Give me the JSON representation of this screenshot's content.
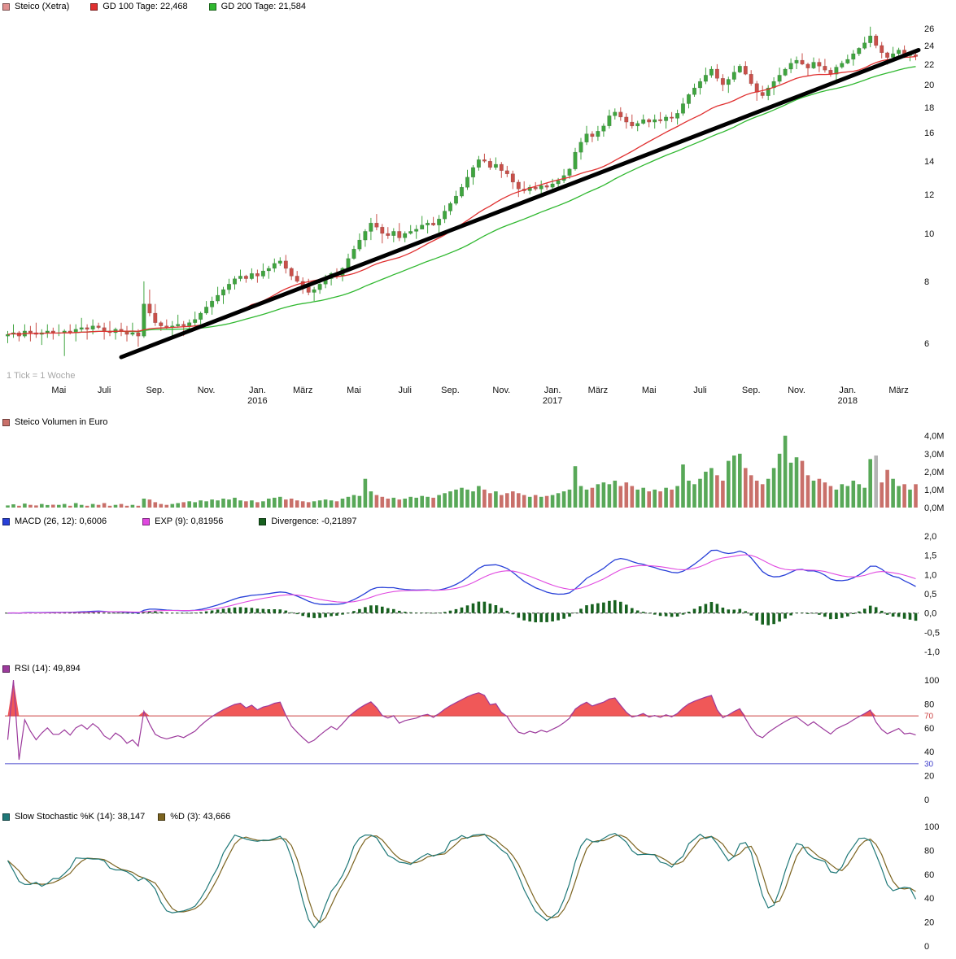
{
  "page": {
    "tick_note": "1 Tick = 1 Woche"
  },
  "colors": {
    "candle_up": "#3fa53f",
    "candle_down": "#c9504a",
    "gd100": "#e03030",
    "gd200": "#30b830",
    "trend": "#000000",
    "vol_up": "#58a858",
    "vol_down": "#c9706a",
    "vol_neutral": "#b4b4b4",
    "macd": "#2840d8",
    "macd_signal": "#e048e0",
    "divergence": "#17611f",
    "rsi": "#9c3a9c",
    "rsi_fill": "#f05858",
    "rsi_70": "#cc4444",
    "rsi_30": "#4444cc",
    "stoch_k": "#1f7878",
    "stoch_d": "#7c6420",
    "legend_title_fill": "#e09090"
  },
  "legends": {
    "main": [
      {
        "label": "Steico (Xetra)"
      },
      {
        "label": "GD 100 Tage: 22,468"
      },
      {
        "label": "GD 200 Tage: 21,584"
      }
    ],
    "volume": [
      {
        "label": "Steico Volumen in Euro"
      }
    ],
    "macd": [
      {
        "label": "MACD (26, 12): 0,6006"
      },
      {
        "label": "EXP (9): 0,81956"
      },
      {
        "label": "Divergence: -0,21897"
      }
    ],
    "rsi": [
      {
        "label": "RSI (14): 49,894"
      }
    ],
    "stoch": [
      {
        "label": "Slow Stochastic %K (14): 38,147"
      },
      {
        "label": "%D (3): 43,666"
      }
    ]
  },
  "chart_data": {
    "type": "multi-panel-stock-chart",
    "title": "Steico (Xetra)",
    "x_unit": "1 Tick = 1 Woche",
    "weeks": 161,
    "x_ticks": [
      {
        "label": "Mai",
        "week": 9
      },
      {
        "label": "Juli",
        "week": 17
      },
      {
        "label": "Sep.",
        "week": 26
      },
      {
        "label": "Nov.",
        "week": 35
      },
      {
        "label": "Jan.",
        "week": 44,
        "year": "2016"
      },
      {
        "label": "März",
        "week": 52
      },
      {
        "label": "Mai",
        "week": 61
      },
      {
        "label": "Juli",
        "week": 70
      },
      {
        "label": "Sep.",
        "week": 78
      },
      {
        "label": "Nov.",
        "week": 87
      },
      {
        "label": "Jan.",
        "week": 96,
        "year": "2017"
      },
      {
        "label": "März",
        "week": 104
      },
      {
        "label": "Mai",
        "week": 113
      },
      {
        "label": "Juli",
        "week": 122
      },
      {
        "label": "Sep.",
        "week": 131
      },
      {
        "label": "Nov.",
        "week": 139
      },
      {
        "label": "Jan.",
        "week": 148,
        "year": "2018"
      },
      {
        "label": "März",
        "week": 157
      }
    ],
    "price": {
      "type": "candlestick",
      "y_scale": "log",
      "ylim": [
        5.0,
        27.5
      ],
      "y_ticks": [
        26,
        24,
        22,
        20,
        18,
        16,
        14,
        12,
        10,
        8,
        6
      ],
      "sma_overlays": [
        {
          "name": "GD 100 Tage",
          "weeks": 20,
          "last": 22.468
        },
        {
          "name": "GD 200 Tage",
          "weeks": 40,
          "last": 21.584
        }
      ],
      "trendline": {
        "from_week": 20,
        "from_price": 5.62,
        "to_week": 161,
        "to_price": 23.5
      },
      "open": [
        6.2,
        6.25,
        6.3,
        6.2,
        6.35,
        6.3,
        6.25,
        6.3,
        6.35,
        6.3,
        6.3,
        6.35,
        6.3,
        6.4,
        6.45,
        6.4,
        6.5,
        6.45,
        6.35,
        6.3,
        6.4,
        6.35,
        6.25,
        6.3,
        6.2,
        7.2,
        6.9,
        6.6,
        6.5,
        6.45,
        6.5,
        6.55,
        6.5,
        6.6,
        6.7,
        6.9,
        7.1,
        7.3,
        7.5,
        7.7,
        7.9,
        8.1,
        8.2,
        8.1,
        8.3,
        8.2,
        8.4,
        8.5,
        8.7,
        8.8,
        8.5,
        8.2,
        8.0,
        7.8,
        7.6,
        7.7,
        7.9,
        8.1,
        8.3,
        8.2,
        8.5,
        8.9,
        9.3,
        9.7,
        10.1,
        10.5,
        10.3,
        10.0,
        9.9,
        10.1,
        9.8,
        10.0,
        10.1,
        10.2,
        10.4,
        10.5,
        10.4,
        10.7,
        11.1,
        11.5,
        11.9,
        12.4,
        13.0,
        13.6,
        14.1,
        14.0,
        13.6,
        13.8,
        13.4,
        13.2,
        12.7,
        12.3,
        12.2,
        12.4,
        12.3,
        12.5,
        12.4,
        12.6,
        12.8,
        13.1,
        13.5,
        14.6,
        15.3,
        15.9,
        15.7,
        16.1,
        16.5,
        17.3,
        17.6,
        17.2,
        16.8,
        16.5,
        16.7,
        17.0,
        16.8,
        17.0,
        16.9,
        17.2,
        17.1,
        17.5,
        18.3,
        19.1,
        19.7,
        20.3,
        20.9,
        21.5,
        20.6,
        20.0,
        20.5,
        21.2,
        21.8,
        21.0,
        20.1,
        19.3,
        19.0,
        19.7,
        20.3,
        20.9,
        21.5,
        22.1,
        22.4,
        22.0,
        21.6,
        22.2,
        21.8,
        21.4,
        21.0,
        21.7,
        22.1,
        22.5,
        23.1,
        23.7,
        24.3,
        25.1,
        24.0,
        23.2,
        22.7,
        23.1,
        23.5,
        22.9,
        23.0
      ],
      "high": [
        6.35,
        6.55,
        6.35,
        6.55,
        6.5,
        6.6,
        6.4,
        6.55,
        6.45,
        6.55,
        6.4,
        6.55,
        6.55,
        6.75,
        6.55,
        6.7,
        6.6,
        6.6,
        6.65,
        6.45,
        6.6,
        6.5,
        6.6,
        6.4,
        8.0,
        7.7,
        7.2,
        6.65,
        6.7,
        6.65,
        6.85,
        6.65,
        6.7,
        6.95,
        6.95,
        7.3,
        7.45,
        7.8,
        7.8,
        8.1,
        8.2,
        8.45,
        8.25,
        8.5,
        8.45,
        8.7,
        8.6,
        8.9,
        8.95,
        9.05,
        8.55,
        8.4,
        8.15,
        8.1,
        7.8,
        8.1,
        8.25,
        8.35,
        8.5,
        8.55,
        9.1,
        9.45,
        10.0,
        10.2,
        10.75,
        10.95,
        10.45,
        10.3,
        10.25,
        10.5,
        10.1,
        10.4,
        10.4,
        10.85,
        10.65,
        10.8,
        10.9,
        11.4,
        11.6,
        12.2,
        12.6,
        13.45,
        13.75,
        14.35,
        14.5,
        14.2,
        14.25,
        13.95,
        13.7,
        13.4,
        12.85,
        12.75,
        12.55,
        12.7,
        12.8,
        12.65,
        12.9,
        12.95,
        13.5,
        13.55,
        14.9,
        15.6,
        16.5,
        16.1,
        16.5,
        16.7,
        17.8,
        17.9,
        18.0,
        17.5,
        17.4,
        16.9,
        17.4,
        17.1,
        17.4,
        17.6,
        17.4,
        17.6,
        17.8,
        18.8,
        19.2,
        20.1,
        20.6,
        21.65,
        21.8,
        22.0,
        21.0,
        20.75,
        21.85,
        22.0,
        22.3,
        21.4,
        20.35,
        19.9,
        19.95,
        20.7,
        21.65,
        21.65,
        22.6,
        22.8,
        23.15,
        22.15,
        22.7,
        22.6,
        22.55,
        21.65,
        21.95,
        22.35,
        23.0,
        23.5,
        23.8,
        25.0,
        26.2,
        25.3,
        24.4,
        23.3,
        23.85,
        23.75,
        24.0,
        23.15,
        23.4
      ],
      "low": [
        6.0,
        6.15,
        6.05,
        6.15,
        6.05,
        6.15,
        5.95,
        6.15,
        6.1,
        6.2,
        5.65,
        6.25,
        6.05,
        6.3,
        6.1,
        6.25,
        6.4,
        6.1,
        6.2,
        6.1,
        6.2,
        6.05,
        6.2,
        5.9,
        6.15,
        6.8,
        6.5,
        6.35,
        6.4,
        6.2,
        6.45,
        6.2,
        6.35,
        6.5,
        6.55,
        6.85,
        6.85,
        7.2,
        7.2,
        7.55,
        7.7,
        8.0,
        7.95,
        8.05,
        7.95,
        8.1,
        8.1,
        8.35,
        8.6,
        8.3,
        8.05,
        7.95,
        7.55,
        7.5,
        7.3,
        7.55,
        7.75,
        7.85,
        8.1,
        8.0,
        8.4,
        8.85,
        9.2,
        9.4,
        9.7,
        10.15,
        9.55,
        9.75,
        9.6,
        9.65,
        9.6,
        9.95,
        9.75,
        10.25,
        10.0,
        10.35,
        10.0,
        10.5,
        10.9,
        11.4,
        11.8,
        12.25,
        12.55,
        13.4,
        13.9,
        13.45,
        13.45,
        12.95,
        13.0,
        12.3,
        11.85,
        12.05,
        12.0,
        12.2,
        11.9,
        12.25,
        12.2,
        12.3,
        12.65,
        12.9,
        13.4,
        14.1,
        15.1,
        15.3,
        15.4,
        15.7,
        16.3,
        17.0,
        16.9,
        16.3,
        16.3,
        16.1,
        16.6,
        16.4,
        16.3,
        16.7,
        16.3,
        16.8,
        16.6,
        17.3,
        17.9,
        18.9,
        19.1,
        20.05,
        20.65,
        20.3,
        19.4,
        19.25,
        20.25,
        21.1,
        20.9,
        19.9,
        18.55,
        18.75,
        18.6,
        19.05,
        20.05,
        20.8,
        21.1,
        21.5,
        21.9,
        20.85,
        21.5,
        21.2,
        21.15,
        20.75,
        20.25,
        21.55,
        22.0,
        21.85,
        22.85,
        23.55,
        23.8,
        23.7,
        22.6,
        21.95,
        22.45,
        22.75,
        22.65,
        22.3,
        22.4
      ],
      "close": [
        6.25,
        6.3,
        6.2,
        6.35,
        6.3,
        6.25,
        6.3,
        6.35,
        6.3,
        6.3,
        6.35,
        6.3,
        6.4,
        6.45,
        6.4,
        6.5,
        6.45,
        6.35,
        6.3,
        6.4,
        6.35,
        6.25,
        6.3,
        6.2,
        7.2,
        6.9,
        6.6,
        6.5,
        6.45,
        6.5,
        6.55,
        6.5,
        6.6,
        6.7,
        6.9,
        7.1,
        7.3,
        7.5,
        7.7,
        7.9,
        8.1,
        8.2,
        8.1,
        8.3,
        8.2,
        8.4,
        8.5,
        8.7,
        8.8,
        8.5,
        8.2,
        8.0,
        7.8,
        7.6,
        7.7,
        7.9,
        8.1,
        8.3,
        8.2,
        8.5,
        8.9,
        9.3,
        9.7,
        10.1,
        10.5,
        10.3,
        10.0,
        9.9,
        10.1,
        9.8,
        10.0,
        10.1,
        10.2,
        10.4,
        10.5,
        10.4,
        10.7,
        11.1,
        11.5,
        11.9,
        12.4,
        13.0,
        13.6,
        14.1,
        14.0,
        13.6,
        13.8,
        13.4,
        13.2,
        12.7,
        12.3,
        12.2,
        12.4,
        12.3,
        12.5,
        12.4,
        12.6,
        12.8,
        13.1,
        13.5,
        14.6,
        15.3,
        15.9,
        15.7,
        16.1,
        16.5,
        17.3,
        17.6,
        17.2,
        16.8,
        16.5,
        16.7,
        17.0,
        16.8,
        17.0,
        16.9,
        17.2,
        17.1,
        17.5,
        18.3,
        19.1,
        19.7,
        20.3,
        20.9,
        21.5,
        20.6,
        20.0,
        20.5,
        21.2,
        21.8,
        21.0,
        20.1,
        19.3,
        19.0,
        19.7,
        20.3,
        20.9,
        21.5,
        22.1,
        22.4,
        22.0,
        21.6,
        22.2,
        21.8,
        21.4,
        21.0,
        21.7,
        22.1,
        22.5,
        23.1,
        23.7,
        24.3,
        25.1,
        24.0,
        23.2,
        22.7,
        23.1,
        23.5,
        22.9,
        23.0,
        22.8
      ]
    },
    "volume": {
      "type": "bar",
      "unit": "EUR millions",
      "ylim": [
        0,
        4.35
      ],
      "y_ticks": [
        {
          "v": 4,
          "label": "4,0M"
        },
        {
          "v": 3,
          "label": "3,0M"
        },
        {
          "v": 2,
          "label": "2,0M"
        },
        {
          "v": 1,
          "label": "1,0M"
        },
        {
          "v": 0,
          "label": "0,0M"
        }
      ],
      "neutral_weeks": [
        153
      ],
      "values": [
        0.12,
        0.18,
        0.1,
        0.22,
        0.15,
        0.12,
        0.2,
        0.14,
        0.16,
        0.15,
        0.2,
        0.1,
        0.25,
        0.15,
        0.1,
        0.2,
        0.15,
        0.25,
        0.1,
        0.15,
        0.2,
        0.1,
        0.15,
        0.1,
        0.5,
        0.45,
        0.3,
        0.2,
        0.15,
        0.2,
        0.25,
        0.3,
        0.35,
        0.3,
        0.4,
        0.35,
        0.45,
        0.4,
        0.5,
        0.45,
        0.55,
        0.4,
        0.35,
        0.4,
        0.3,
        0.35,
        0.5,
        0.55,
        0.6,
        0.45,
        0.5,
        0.4,
        0.35,
        0.3,
        0.35,
        0.4,
        0.45,
        0.4,
        0.35,
        0.5,
        0.6,
        0.7,
        0.65,
        1.6,
        0.9,
        0.7,
        0.6,
        0.5,
        0.55,
        0.45,
        0.5,
        0.6,
        0.55,
        0.65,
        0.6,
        0.55,
        0.7,
        0.8,
        0.9,
        1.0,
        1.1,
        1.0,
        0.9,
        1.2,
        1.0,
        0.8,
        0.9,
        0.7,
        0.8,
        0.9,
        0.8,
        0.7,
        0.6,
        0.7,
        0.6,
        0.65,
        0.7,
        0.8,
        0.9,
        1.0,
        2.3,
        1.2,
        1.0,
        1.1,
        1.3,
        1.4,
        1.3,
        1.5,
        1.2,
        1.4,
        1.2,
        1.0,
        1.1,
        0.9,
        1.0,
        0.9,
        1.1,
        1.0,
        1.2,
        2.4,
        1.5,
        1.3,
        1.6,
        2.0,
        2.2,
        1.8,
        1.5,
        2.6,
        2.9,
        3.0,
        2.2,
        1.8,
        1.5,
        1.3,
        1.6,
        2.2,
        3.0,
        4.0,
        2.5,
        2.8,
        2.6,
        1.8,
        1.5,
        1.6,
        1.4,
        1.2,
        1.0,
        1.3,
        1.2,
        1.5,
        1.3,
        1.1,
        2.7,
        2.9,
        1.4,
        2.1,
        1.6,
        1.2,
        1.3,
        1.0,
        1.3
      ]
    },
    "macd": {
      "type": "line+histogram",
      "fast": 12,
      "slow": 26,
      "signal": 9,
      "ylim": [
        -1.15,
        2.15
      ],
      "y_ticks": [
        {
          "v": 2,
          "label": "2,0"
        },
        {
          "v": 1.5,
          "label": "1,5"
        },
        {
          "v": 1,
          "label": "1,0"
        },
        {
          "v": 0.5,
          "label": "0,5"
        },
        {
          "v": 0,
          "label": "0,0"
        },
        {
          "v": -0.5,
          "label": "-0,5"
        },
        {
          "v": -1,
          "label": "-1,0"
        }
      ],
      "last": {
        "macd": 0.6006,
        "signal": 0.81956,
        "divergence": -0.21897
      }
    },
    "rsi": {
      "type": "line",
      "period": 14,
      "ylim": [
        0,
        100
      ],
      "overbought": 70,
      "oversold": 30,
      "overbought_label": "70",
      "oversold_label": "30",
      "y_ticks": [
        {
          "v": 100,
          "label": "100"
        },
        {
          "v": 80,
          "label": "80"
        },
        {
          "v": 60,
          "label": "60"
        },
        {
          "v": 40,
          "label": "40"
        },
        {
          "v": 20,
          "label": "20"
        },
        {
          "v": 0,
          "label": "0"
        }
      ],
      "last": 49.894
    },
    "stochastic": {
      "type": "line",
      "k_period": 14,
      "k_smooth": 3,
      "d_period": 3,
      "ylim": [
        0,
        100
      ],
      "y_ticks": [
        {
          "v": 100,
          "label": "100"
        },
        {
          "v": 80,
          "label": "80"
        },
        {
          "v": 60,
          "label": "60"
        },
        {
          "v": 40,
          "label": "40"
        },
        {
          "v": 20,
          "label": "20"
        },
        {
          "v": 0,
          "label": "0"
        }
      ],
      "last_k": 38.147,
      "last_d": 43.666
    }
  }
}
